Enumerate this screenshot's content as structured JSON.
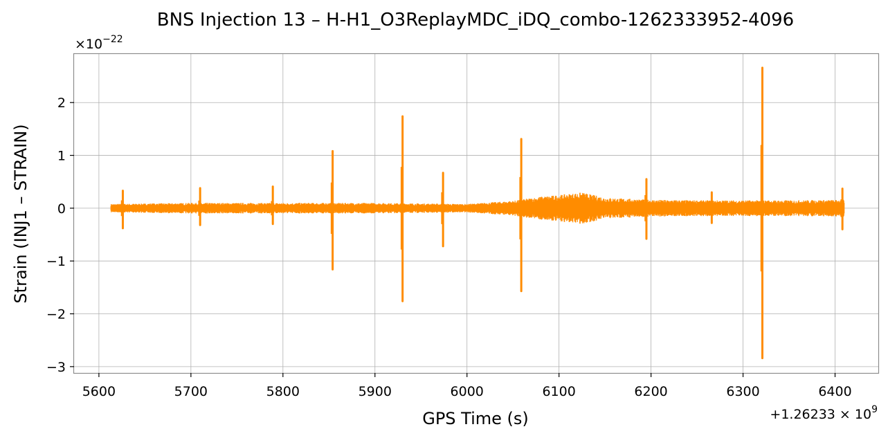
{
  "chart_data": {
    "type": "line",
    "title": "BNS Injection 13 – H-H1_O3ReplayMDC_iDQ_combo-1262333952-4096",
    "xlabel": "GPS Time (s)",
    "ylabel": "Strain (INJ1 – STRAIN)",
    "x_offset_label": "+1.26233 × 10^9",
    "y_scale_label": "×10^−22",
    "xlim": [
      5573,
      6447
    ],
    "ylim": [
      -3.12,
      2.92
    ],
    "x_ticks": [
      5600,
      5700,
      5800,
      5900,
      6000,
      6100,
      6200,
      6300,
      6400
    ],
    "x_tick_labels": [
      "5600",
      "5700",
      "5800",
      "5900",
      "6000",
      "6100",
      "6200",
      "6300",
      "6400"
    ],
    "y_ticks": [
      -3,
      -2,
      -1,
      0,
      1,
      2
    ],
    "y_tick_labels": [
      "−3",
      "−2",
      "−1",
      "0",
      "1",
      "2"
    ],
    "grid": true,
    "series": [
      {
        "color": "#ff8c00",
        "x_range": [
          5613,
          6410
        ],
        "noise_envelope": {
          "x": [
            5613,
            5700,
            5790,
            5850,
            5900,
            5950,
            6000,
            6050,
            6080,
            6100,
            6125,
            6150,
            6200,
            6250,
            6300,
            6350,
            6410
          ],
          "amplitude": [
            0.08,
            0.1,
            0.1,
            0.1,
            0.1,
            0.09,
            0.08,
            0.14,
            0.22,
            0.25,
            0.3,
            0.2,
            0.16,
            0.15,
            0.15,
            0.15,
            0.16
          ]
        },
        "spikes": [
          {
            "x": 5626,
            "max": 0.33,
            "min": -0.38
          },
          {
            "x": 5710,
            "max": 0.38,
            "min": -0.32
          },
          {
            "x": 5789,
            "max": 0.41,
            "min": -0.3
          },
          {
            "x": 5854,
            "max": 1.08,
            "min": -1.16
          },
          {
            "x": 5930,
            "max": 1.74,
            "min": -1.76
          },
          {
            "x": 5974,
            "max": 0.67,
            "min": -0.72
          },
          {
            "x": 6059,
            "max": 1.31,
            "min": -1.57
          },
          {
            "x": 6195,
            "max": 0.55,
            "min": -0.58
          },
          {
            "x": 6266,
            "max": 0.3,
            "min": -0.28
          },
          {
            "x": 6321,
            "max": 2.66,
            "min": -2.84
          },
          {
            "x": 6408,
            "max": 0.37,
            "min": -0.4
          }
        ]
      }
    ]
  }
}
